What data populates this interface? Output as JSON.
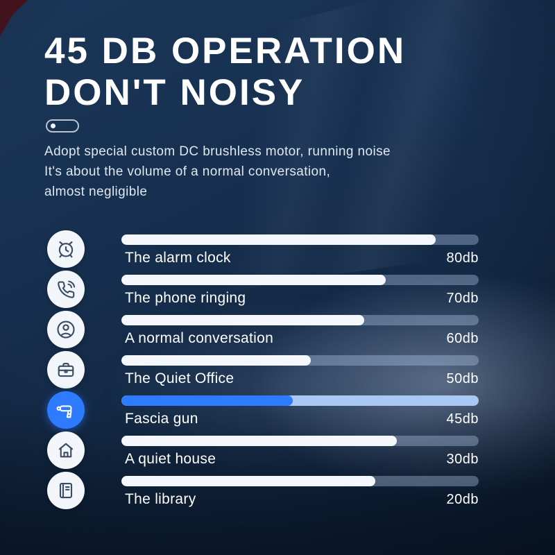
{
  "page": {
    "title": "45 DB OPERATION\nDON'T NOISY",
    "description": "Adopt special custom DC brushless motor, running noise\nIt's about the volume of a normal conversation,\nalmost negligible"
  },
  "colors": {
    "accent": "#2e7bff",
    "accent_track": "#a9c8f4",
    "bar_fill": "#f4f8fd",
    "icon_stroke": "#3b4d63",
    "background_dark_blue": "#122843",
    "corner_maroon": "#47131e"
  },
  "rows": [
    {
      "icon": "alarm-clock-icon",
      "label": "The alarm clock",
      "value": "80db",
      "db": 80,
      "fill_pct": 88,
      "highlight": false
    },
    {
      "icon": "phone-ringing-icon",
      "label": "The phone ringing",
      "value": "70db",
      "db": 70,
      "fill_pct": 74,
      "highlight": false
    },
    {
      "icon": "person-icon",
      "label": "A normal conversation",
      "value": "60db",
      "db": 60,
      "fill_pct": 68,
      "highlight": false
    },
    {
      "icon": "briefcase-icon",
      "label": "The Quiet Office",
      "value": "50db",
      "db": 50,
      "fill_pct": 53,
      "highlight": false
    },
    {
      "icon": "fascia-gun-icon",
      "label": "Fascia gun",
      "value": "45db",
      "db": 45,
      "fill_pct": 48,
      "highlight": true
    },
    {
      "icon": "house-icon",
      "label": "A quiet house",
      "value": "30db",
      "db": 30,
      "fill_pct": 77,
      "highlight": false
    },
    {
      "icon": "book-icon",
      "label": "The library",
      "value": "20db",
      "db": 20,
      "fill_pct": 71,
      "highlight": false
    }
  ],
  "chart_data": {
    "type": "bar",
    "title": "45 DB OPERATION DON'T NOISY",
    "categories": [
      "The alarm clock",
      "The phone ringing",
      "A normal conversation",
      "The Quiet Office",
      "Fascia gun",
      "A quiet house",
      "The library"
    ],
    "values": [
      80,
      70,
      60,
      50,
      45,
      30,
      20
    ],
    "value_labels": [
      "80db",
      "70db",
      "60db",
      "50db",
      "45db",
      "30db",
      "20db"
    ],
    "unit": "db",
    "highlighted_category": "Fascia gun",
    "orientation": "horizontal",
    "legend": "none",
    "grid": false,
    "bar_fill_pct": [
      88,
      74,
      68,
      53,
      48,
      77,
      71
    ]
  }
}
